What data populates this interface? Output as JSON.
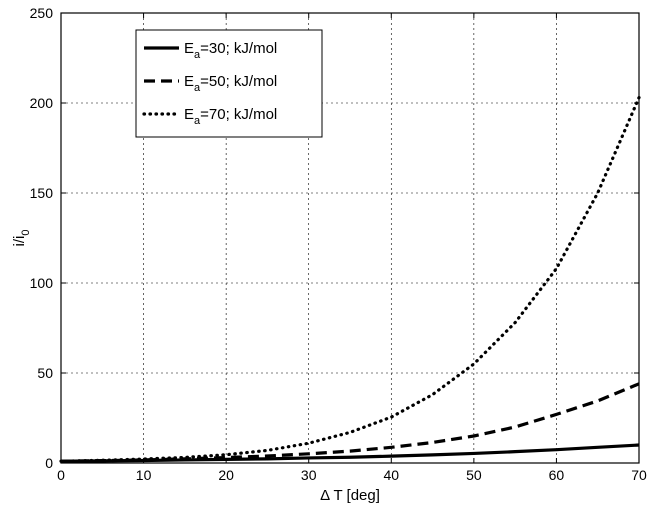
{
  "chart_data": {
    "type": "line",
    "title": "",
    "xlabel": "Δ T [deg]",
    "ylabel_main": "i/i",
    "ylabel_sub": "0",
    "xlim": [
      0,
      70
    ],
    "ylim": [
      0,
      250
    ],
    "xticks": [
      0,
      10,
      20,
      30,
      40,
      50,
      60,
      70
    ],
    "yticks": [
      0,
      50,
      100,
      150,
      200,
      250
    ],
    "grid": true,
    "legend_position": "top-left",
    "x": [
      0,
      5,
      10,
      15,
      20,
      25,
      30,
      35,
      40,
      45,
      50,
      55,
      60,
      65,
      70
    ],
    "series": [
      {
        "name_prefix": "E",
        "name_sub": "a",
        "name_suffix": "=30; kJ/mol",
        "style": "solid",
        "values": [
          1.0,
          1.2,
          1.4,
          1.7,
          2.0,
          2.3,
          2.8,
          3.2,
          3.8,
          4.5,
          5.3,
          6.3,
          7.4,
          8.7,
          10.0
        ]
      },
      {
        "name_prefix": "E",
        "name_sub": "a",
        "name_suffix": "=50; kJ/mol",
        "style": "dashed",
        "values": [
          1.0,
          1.3,
          1.7,
          2.3,
          3.0,
          3.9,
          5.1,
          6.6,
          8.7,
          11.4,
          15.0,
          20.0,
          27.0,
          34.5,
          44.0
        ]
      },
      {
        "name_prefix": "E",
        "name_sub": "a",
        "name_suffix": "=70; kJ/mol",
        "style": "dotted",
        "values": [
          1.0,
          1.5,
          2.2,
          3.1,
          4.6,
          7.0,
          11.0,
          17.0,
          25.5,
          38.0,
          55.0,
          78.0,
          108.0,
          150.0,
          203.0
        ]
      }
    ]
  }
}
